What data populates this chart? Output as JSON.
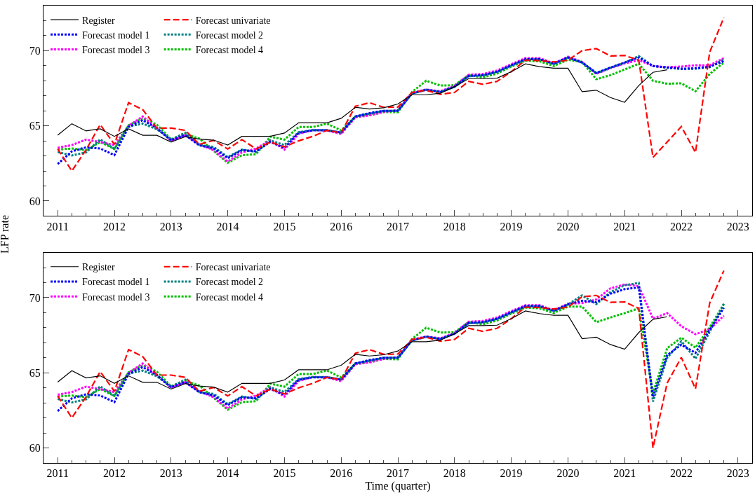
{
  "chart_data": [
    {
      "type": "line",
      "ylabel": "LFP rate",
      "xlim": [
        2010.75,
        2023.25
      ],
      "xticks": [
        2011,
        2012,
        2013,
        2014,
        2015,
        2016,
        2017,
        2018,
        2019,
        2020,
        2021,
        2022,
        2023
      ],
      "ylim": [
        59,
        73
      ],
      "yticks": [
        60,
        65,
        70
      ],
      "legend": "top left",
      "x": [
        2011,
        2011.25,
        2011.5,
        2011.75,
        2012,
        2012.25,
        2012.5,
        2012.75,
        2013,
        2013.25,
        2013.5,
        2013.75,
        2014,
        2014.25,
        2014.5,
        2014.75,
        2015,
        2015.25,
        2015.5,
        2015.75,
        2016,
        2016.25,
        2016.5,
        2016.75,
        2017,
        2017.25,
        2017.5,
        2017.75,
        2018,
        2018.25,
        2018.5,
        2018.75,
        2019,
        2019.25,
        2019.5,
        2019.75,
        2020,
        2020.25,
        2020.5,
        2020.75,
        2021,
        2021.25,
        2021.5,
        2021.75,
        2022,
        2022.25,
        2022.5,
        2022.75
      ],
      "series": [
        {
          "name": "Register",
          "color": "#000000",
          "line_style": "solid",
          "values": [
            64.38,
            65.14,
            64.66,
            64.8,
            64.3,
            64.8,
            64.37,
            64.37,
            63.92,
            64.28,
            64.12,
            64.05,
            63.72,
            64.3,
            64.3,
            64.3,
            64.52,
            65.2,
            65.2,
            65.2,
            65.5,
            66.23,
            66.12,
            66.2,
            66.45,
            67.07,
            67.07,
            67.17,
            67.6,
            68.14,
            68.14,
            68.17,
            68.6,
            69.12,
            68.94,
            68.83,
            68.83,
            67.27,
            67.37,
            66.88,
            66.57,
            67.68,
            68.56,
            68.73,
            null,
            null,
            null,
            null
          ]
        },
        {
          "name": "Forecast univariate",
          "color": "#ff0000",
          "line_style": "dashed",
          "values": [
            63.46,
            62.0,
            63.4,
            65.08,
            63.77,
            66.54,
            66.08,
            64.85,
            64.85,
            64.7,
            63.77,
            64.03,
            63.46,
            64.08,
            63.46,
            63.92,
            63.6,
            64.0,
            64.3,
            64.7,
            64.54,
            66.3,
            66.54,
            66.23,
            66.25,
            67.22,
            67.37,
            67.1,
            67.22,
            67.96,
            67.76,
            67.96,
            68.6,
            69.37,
            69.34,
            69.25,
            69.37,
            70.0,
            70.14,
            69.65,
            69.68,
            69.37,
            62.9,
            63.92,
            64.95,
            63.23,
            69.9,
            72.2
          ]
        },
        {
          "name": "Forecast model 1",
          "color": "#0000ff",
          "line_style": "dotted",
          "values": [
            62.46,
            63.3,
            63.57,
            63.49,
            63.05,
            64.92,
            65.38,
            64.85,
            64.03,
            64.38,
            63.7,
            63.5,
            62.85,
            63.38,
            63.3,
            63.92,
            63.54,
            64.54,
            64.7,
            64.7,
            64.55,
            65.62,
            65.85,
            66.0,
            66.0,
            67.15,
            67.4,
            67.25,
            67.6,
            68.32,
            68.37,
            68.6,
            69.03,
            69.44,
            69.44,
            69.13,
            69.55,
            69.21,
            68.52,
            68.88,
            69.21,
            69.55,
            68.98,
            68.88,
            68.8,
            68.83,
            68.94,
            69.3
          ]
        },
        {
          "name": "Forecast model 2",
          "color": "#008080",
          "line_style": "dotted",
          "values": [
            63.26,
            63.03,
            63.23,
            64.1,
            63.46,
            64.95,
            65.15,
            64.77,
            64.08,
            64.54,
            63.72,
            63.6,
            62.92,
            63.42,
            63.26,
            64.03,
            63.72,
            64.58,
            64.72,
            64.72,
            64.55,
            65.62,
            65.8,
            66.0,
            66.0,
            67.15,
            67.4,
            67.25,
            67.6,
            68.3,
            68.35,
            68.58,
            69.0,
            69.4,
            69.42,
            69.1,
            69.55,
            69.2,
            68.5,
            68.86,
            69.2,
            69.64,
            68.98,
            68.86,
            68.78,
            68.8,
            68.9,
            69.44
          ]
        },
        {
          "name": "Forecast model 3",
          "color": "#ff00ff",
          "line_style": "dotted",
          "values": [
            63.54,
            63.72,
            64.08,
            63.92,
            63.72,
            65.0,
            65.62,
            64.85,
            64.0,
            64.38,
            63.77,
            63.38,
            62.62,
            63.23,
            63.49,
            64.03,
            63.42,
            64.46,
            64.72,
            64.7,
            64.45,
            65.57,
            65.69,
            65.92,
            66.05,
            67.2,
            67.42,
            67.3,
            67.65,
            68.4,
            68.45,
            68.68,
            69.1,
            69.5,
            69.5,
            69.15,
            69.6,
            69.25,
            68.45,
            68.85,
            69.15,
            69.37,
            68.98,
            68.9,
            68.95,
            69.03,
            69.03,
            69.5
          ]
        },
        {
          "name": "Forecast model 4",
          "color": "#00c000",
          "line_style": "dotted",
          "values": [
            63.42,
            63.49,
            63.38,
            63.92,
            63.46,
            65.03,
            65.5,
            65.08,
            64.1,
            64.46,
            64.15,
            63.34,
            62.54,
            63.05,
            63.11,
            64.28,
            64.08,
            64.92,
            64.92,
            65.15,
            64.69,
            65.62,
            65.72,
            65.92,
            65.9,
            67.25,
            68.0,
            67.68,
            67.7,
            68.37,
            68.22,
            68.48,
            68.94,
            69.34,
            69.29,
            68.98,
            69.4,
            69.25,
            68.1,
            68.37,
            68.75,
            69.13,
            68.0,
            67.8,
            67.83,
            67.3,
            68.45,
            69.21
          ]
        }
      ]
    },
    {
      "type": "line",
      "xlabel": "Time (quarter)",
      "xlim": [
        2010.75,
        2023.25
      ],
      "xticks": [
        2011,
        2012,
        2013,
        2014,
        2015,
        2016,
        2017,
        2018,
        2019,
        2020,
        2021,
        2022,
        2023
      ],
      "ylim": [
        59,
        73
      ],
      "yticks": [
        60,
        65,
        70
      ],
      "legend": "top left",
      "x": [
        2011,
        2011.25,
        2011.5,
        2011.75,
        2012,
        2012.25,
        2012.5,
        2012.75,
        2013,
        2013.25,
        2013.5,
        2013.75,
        2014,
        2014.25,
        2014.5,
        2014.75,
        2015,
        2015.25,
        2015.5,
        2015.75,
        2016,
        2016.25,
        2016.5,
        2016.75,
        2017,
        2017.25,
        2017.5,
        2017.75,
        2018,
        2018.25,
        2018.5,
        2018.75,
        2019,
        2019.25,
        2019.5,
        2019.75,
        2020,
        2020.25,
        2020.5,
        2020.75,
        2021,
        2021.25,
        2021.5,
        2021.75,
        2022,
        2022.25,
        2022.5,
        2022.75
      ],
      "series": [
        {
          "name": "Register",
          "color": "#000000",
          "line_style": "solid",
          "values": [
            64.38,
            65.14,
            64.66,
            64.8,
            64.3,
            64.8,
            64.37,
            64.37,
            63.92,
            64.28,
            64.12,
            64.05,
            63.72,
            64.3,
            64.3,
            64.3,
            64.52,
            65.2,
            65.2,
            65.2,
            65.5,
            66.23,
            66.12,
            66.2,
            66.45,
            67.07,
            67.07,
            67.17,
            67.6,
            68.14,
            68.14,
            68.17,
            68.6,
            69.12,
            68.94,
            68.83,
            68.83,
            67.27,
            67.37,
            66.88,
            66.57,
            67.68,
            68.56,
            68.73,
            null,
            null,
            null,
            null
          ]
        },
        {
          "name": "Forecast univariate",
          "color": "#ff0000",
          "line_style": "dashed",
          "values": [
            63.46,
            62.0,
            63.4,
            65.08,
            63.77,
            66.54,
            66.08,
            64.85,
            64.85,
            64.7,
            63.77,
            64.03,
            63.46,
            64.08,
            63.46,
            63.92,
            63.6,
            64.0,
            64.3,
            64.7,
            64.54,
            66.3,
            66.54,
            66.23,
            66.25,
            67.22,
            67.37,
            67.1,
            67.22,
            67.96,
            67.76,
            67.96,
            68.6,
            69.37,
            69.34,
            69.25,
            69.37,
            70.06,
            70.15,
            69.69,
            69.72,
            69.29,
            60.0,
            64.32,
            66.02,
            63.94,
            69.64,
            71.8
          ]
        },
        {
          "name": "Forecast model 1",
          "color": "#0000ff",
          "line_style": "dotted",
          "values": [
            62.46,
            63.3,
            63.57,
            63.49,
            63.05,
            64.92,
            65.38,
            64.85,
            64.03,
            64.38,
            63.7,
            63.5,
            62.85,
            63.38,
            63.3,
            63.92,
            63.54,
            64.54,
            64.7,
            64.7,
            64.55,
            65.62,
            65.85,
            66.0,
            66.0,
            67.15,
            67.4,
            67.25,
            67.6,
            68.32,
            68.37,
            68.6,
            69.03,
            69.44,
            69.44,
            69.13,
            69.55,
            69.8,
            69.7,
            70.26,
            70.57,
            70.68,
            63.4,
            66.17,
            66.87,
            66.33,
            67.87,
            69.33
          ]
        },
        {
          "name": "Forecast model 2",
          "color": "#008080",
          "line_style": "dotted",
          "values": [
            63.26,
            63.03,
            63.23,
            64.1,
            63.46,
            64.95,
            65.15,
            64.77,
            64.08,
            64.54,
            63.72,
            63.6,
            62.92,
            63.42,
            63.26,
            64.03,
            63.72,
            64.58,
            64.72,
            64.72,
            64.55,
            65.62,
            65.8,
            66.0,
            66.0,
            67.15,
            67.4,
            67.25,
            67.6,
            68.3,
            68.35,
            68.58,
            69.0,
            69.4,
            69.42,
            69.1,
            69.55,
            70.15,
            69.57,
            70.37,
            70.83,
            70.98,
            63.09,
            65.99,
            67.1,
            65.94,
            67.72,
            69.6
          ]
        },
        {
          "name": "Forecast model 3",
          "color": "#ff00ff",
          "line_style": "dotted",
          "values": [
            63.54,
            63.72,
            64.08,
            63.92,
            63.72,
            65.0,
            65.62,
            64.85,
            64.0,
            64.38,
            63.77,
            63.38,
            62.62,
            63.23,
            63.49,
            64.03,
            63.42,
            64.46,
            64.72,
            64.7,
            64.45,
            65.57,
            65.69,
            65.92,
            66.05,
            67.2,
            67.42,
            67.3,
            67.65,
            68.4,
            68.45,
            68.68,
            69.1,
            69.5,
            69.5,
            69.15,
            69.6,
            69.64,
            69.88,
            70.62,
            70.88,
            70.77,
            68.6,
            68.97,
            68.1,
            67.57,
            67.9,
            68.8
          ]
        },
        {
          "name": "Forecast model 4",
          "color": "#00c000",
          "line_style": "dotted",
          "values": [
            63.42,
            63.49,
            63.38,
            63.92,
            63.46,
            65.03,
            65.5,
            65.08,
            64.1,
            64.46,
            64.15,
            63.34,
            62.54,
            63.05,
            63.11,
            64.28,
            64.08,
            64.92,
            64.92,
            65.15,
            64.69,
            65.62,
            65.72,
            65.92,
            65.9,
            67.25,
            68.0,
            67.68,
            67.7,
            68.37,
            68.22,
            68.48,
            68.94,
            69.34,
            69.29,
            68.98,
            69.4,
            69.41,
            68.37,
            68.68,
            68.97,
            69.29,
            63.63,
            66.64,
            67.34,
            66.67,
            68.03,
            69.57
          ]
        }
      ]
    }
  ]
}
